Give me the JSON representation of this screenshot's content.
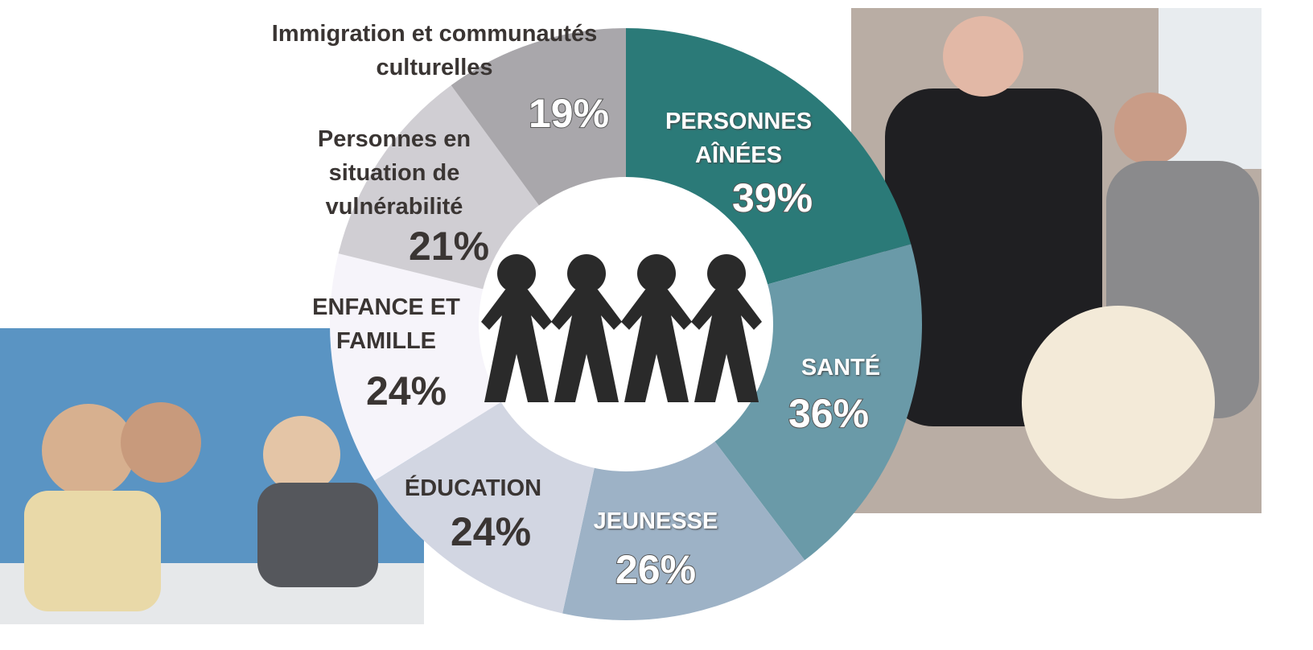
{
  "chart_data": {
    "type": "donut",
    "categories": [
      "PERSONNES AÎNÉES",
      "SANTÉ",
      "JEUNESSE",
      "ÉDUCATION",
      "ENFANCE ET FAMILLE",
      "Personnes en situation de vulnérabilité",
      "Immigration et communautés culturelles"
    ],
    "values": [
      39,
      36,
      26,
      24,
      24,
      21,
      19
    ],
    "value_labels": [
      "39%",
      "36%",
      "26%",
      "24%",
      "24%",
      "21%",
      "19%"
    ],
    "colors": [
      "#2b7a78",
      "#6a9aa8",
      "#9db2c6",
      "#d2d6e2",
      "#f6f4fa",
      "#d0ced3",
      "#a9a7ab"
    ]
  }
}
